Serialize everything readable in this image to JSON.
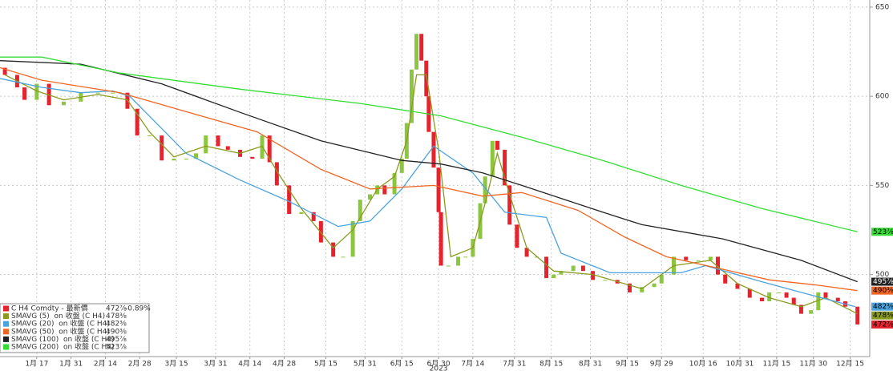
{
  "chart_data": {
    "type": "candlestick",
    "xlim": [
      2,
      357
    ],
    "ylim": [
      454,
      654
    ],
    "yticks": [
      500,
      550,
      600,
      650
    ],
    "xticks": [
      {
        "value": 17,
        "label": "1月 17"
      },
      {
        "value": 31,
        "label": "1月 31"
      },
      {
        "value": 45,
        "label": "2月 14"
      },
      {
        "value": 59,
        "label": "2月 28"
      },
      {
        "value": 74,
        "label": "3月 15"
      },
      {
        "value": 90,
        "label": "3月 31"
      },
      {
        "value": 104,
        "label": "4月 14"
      },
      {
        "value": 118,
        "label": "4月 28"
      },
      {
        "value": 135,
        "label": "5月 15"
      },
      {
        "value": 151,
        "label": "5月 31"
      },
      {
        "value": 166,
        "label": "6月 15"
      },
      {
        "value": 181,
        "label": "6月 30"
      },
      {
        "value": 195,
        "label": "7月 14"
      },
      {
        "value": 212,
        "label": "7月 31"
      },
      {
        "value": 227,
        "label": "8月 15"
      },
      {
        "value": 243,
        "label": "8月 31"
      },
      {
        "value": 258,
        "label": "9月 15"
      },
      {
        "value": 272,
        "label": "9月 29"
      },
      {
        "value": 289,
        "label": "10月 16"
      },
      {
        "value": 304,
        "label": "10月 31"
      },
      {
        "value": 319,
        "label": "11月 15"
      },
      {
        "value": 334,
        "label": "11月 30"
      },
      {
        "value": 349,
        "label": "12月 15"
      }
    ],
    "year_label": "2023",
    "grid": true,
    "candles": {
      "name": "C H4 Comdty - 最新價",
      "last_label": "472⅞",
      "change": "-0.89%",
      "up_color": "#8cc63f",
      "down_color": "#e8222d",
      "x": [
        4,
        9,
        12,
        17,
        22,
        28,
        35,
        42,
        48,
        54,
        58,
        63,
        68,
        73,
        78,
        82,
        86,
        91,
        95,
        100,
        105,
        109,
        112,
        115,
        120,
        125,
        130,
        133,
        138,
        142,
        146,
        149,
        153,
        156,
        159,
        163,
        166,
        168,
        170,
        172,
        174,
        176,
        177,
        179,
        181,
        182,
        185,
        189,
        192,
        195,
        198,
        200,
        203,
        205,
        208,
        210,
        213,
        217,
        221,
        225,
        228,
        231,
        236,
        240,
        244,
        249,
        254,
        259,
        264,
        269,
        272,
        277,
        282,
        287,
        292,
        295,
        298,
        303,
        308,
        313,
        316,
        320,
        323,
        326,
        329,
        333,
        336,
        339,
        344,
        347,
        352
      ],
      "open": [
        616,
        612,
        605,
        598,
        607,
        595,
        597,
        602,
        602,
        602,
        593,
        578,
        578,
        564,
        565,
        565,
        568,
        578,
        572,
        570,
        566,
        565,
        578,
        563,
        550,
        534,
        535,
        530,
        518,
        510,
        510,
        530,
        542,
        545,
        550,
        545,
        557,
        565,
        585,
        615,
        635,
        620,
        600,
        580,
        560,
        535,
        505,
        505,
        510,
        510,
        520,
        540,
        555,
        575,
        570,
        550,
        528,
        515,
        510,
        510,
        498,
        500,
        502,
        505,
        502,
        497,
        497,
        495,
        490,
        493,
        495,
        500,
        510,
        508,
        508,
        510,
        500,
        495,
        492,
        487,
        485,
        490,
        490,
        487,
        483,
        478,
        480,
        490,
        487,
        485,
        482
      ],
      "close": [
        612,
        605,
        598,
        607,
        595,
        597,
        602,
        602,
        602,
        593,
        578,
        578,
        564,
        565,
        565,
        568,
        578,
        572,
        570,
        566,
        565,
        578,
        563,
        550,
        534,
        535,
        530,
        518,
        510,
        510,
        530,
        542,
        545,
        550,
        545,
        557,
        565,
        585,
        615,
        635,
        620,
        600,
        580,
        560,
        535,
        505,
        505,
        510,
        510,
        520,
        540,
        555,
        575,
        570,
        550,
        528,
        515,
        510,
        510,
        498,
        500,
        502,
        505,
        502,
        497,
        497,
        495,
        490,
        493,
        495,
        500,
        510,
        508,
        508,
        510,
        500,
        495,
        492,
        487,
        485,
        490,
        490,
        487,
        483,
        478,
        480,
        490,
        487,
        485,
        482,
        472
      ]
    },
    "series": [
      {
        "name": "SMAVG (5)  on 收盤 (C H4)",
        "color": "#8a9a1f",
        "last_label": "478⅜",
        "x": [
          4,
          17,
          28,
          42,
          54,
          63,
          73,
          86,
          100,
          109,
          115,
          125,
          138,
          146,
          156,
          163,
          168,
          172,
          176,
          181,
          186,
          195,
          200,
          205,
          210,
          217,
          228,
          244,
          264,
          277,
          292,
          303,
          316,
          329,
          339,
          352
        ],
        "values": [
          612,
          603,
          598,
          601,
          598,
          580,
          566,
          572,
          568,
          572,
          558,
          537,
          515,
          525,
          548,
          555,
          575,
          612,
          612,
          570,
          510,
          515,
          540,
          568,
          545,
          515,
          502,
          500,
          492,
          505,
          508,
          495,
          487,
          482,
          487,
          478
        ]
      },
      {
        "name": "SMAVG (20)  on 收盤 (C H4)",
        "color": "#4aa3df",
        "last_label": "482⅜",
        "x": [
          2,
          19,
          35,
          48,
          55,
          78,
          100,
          120,
          140,
          153,
          166,
          179,
          195,
          208,
          225,
          231,
          251,
          280,
          290,
          313,
          329,
          351
        ],
        "values": [
          610,
          605,
          602,
          603,
          600,
          568,
          553,
          541,
          527,
          530,
          548,
          572,
          557,
          535,
          532,
          512,
          501,
          501,
          505,
          496,
          490,
          482
        ]
      },
      {
        "name": "SMAVG (50)  on 收盤 (C H4)",
        "color": "#f26522",
        "last_label": "490⅜",
        "x": [
          2,
          19,
          51,
          84,
          107,
          133,
          153,
          179,
          199,
          215,
          238,
          257,
          274,
          297,
          316,
          336,
          352
        ],
        "values": [
          616,
          609,
          602,
          589,
          580,
          559,
          548,
          550,
          544,
          546,
          536,
          521,
          510,
          503,
          497,
          494,
          491
        ]
      },
      {
        "name": "SMAVG (100)  on 收盤 (C H4)",
        "color": "#222222",
        "last_label": "495⅞",
        "x": [
          2,
          35,
          68,
          100,
          133,
          166,
          182,
          199,
          215,
          248,
          264,
          297,
          329,
          352
        ],
        "values": [
          620,
          618,
          607,
          591,
          575,
          564,
          562,
          557,
          550,
          535,
          528,
          520,
          508,
          496
        ]
      },
      {
        "name": "SMAVG (200)  on 收盤 (C H4)",
        "color": "#33dd33",
        "last_label": "523⅞",
        "x": [
          2,
          19,
          51,
          100,
          149,
          182,
          215,
          248,
          280,
          313,
          352
        ],
        "values": [
          622,
          622,
          613,
          604,
          596,
          589,
          577,
          564,
          550,
          537,
          524
        ]
      }
    ]
  }
}
